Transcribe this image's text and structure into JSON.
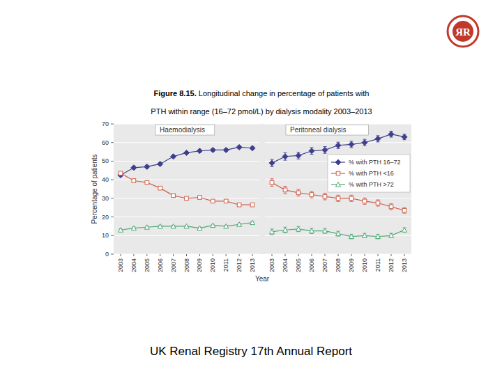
{
  "figure_label": "Figure 8.15.",
  "title_lines": [
    "Longitudinal change in percentage of patients with",
    "PTH within range (16–72 pmol/L) by dialysis modality 2003–2013"
  ],
  "footer": "UK Renal Registry 17th Annual Report",
  "logo_text": "ЯR",
  "chart_data": [
    {
      "type": "line",
      "title": "Haemodialysis",
      "y_label": "Percentage of patients",
      "x_label": "Year",
      "categories": [
        "2003",
        "2004",
        "2005",
        "2006",
        "2007",
        "2008",
        "2009",
        "2010",
        "2011",
        "2012",
        "2013"
      ],
      "ylim": [
        0,
        70
      ],
      "yticks": [
        0,
        10,
        20,
        30,
        40,
        50,
        60,
        70
      ],
      "grid": true,
      "series": [
        {
          "color": "#3f3f8f",
          "marker": "diamond",
          "values": [
            42.5,
            46.5,
            47,
            48.5,
            52.5,
            54.5,
            55.5,
            56,
            56,
            57.5,
            57
          ],
          "errors": [
            0.8,
            0.8,
            0.8,
            0.8,
            0.7,
            0.7,
            0.7,
            0.7,
            0.7,
            0.7,
            0.6
          ]
        },
        {
          "color": "#d0604c",
          "marker": "square",
          "values": [
            43.5,
            39.5,
            38.5,
            35.5,
            31.5,
            30,
            30.5,
            28.5,
            28.5,
            26.5,
            26.5
          ],
          "errors": [
            0.8,
            0.8,
            0.8,
            0.8,
            0.7,
            0.7,
            0.7,
            0.7,
            0.6,
            0.6,
            0.6
          ]
        },
        {
          "color": "#4fa874",
          "marker": "triangle",
          "values": [
            13,
            14,
            14.5,
            15,
            15,
            15,
            14,
            15.5,
            15,
            16,
            17
          ],
          "errors": [
            0.6,
            0.6,
            0.6,
            0.6,
            0.5,
            0.5,
            0.5,
            0.5,
            0.5,
            0.5,
            0.5
          ]
        }
      ]
    },
    {
      "type": "line",
      "title": "Peritoneal dialysis",
      "tick_labels": "x",
      "legend": "upper right",
      "categories": [
        "2003",
        "2004",
        "2005",
        "2006",
        "2007",
        "2008",
        "2009",
        "2010",
        "2011",
        "2012",
        "2013"
      ],
      "ylim": [
        0,
        70
      ],
      "yticks": [
        0,
        10,
        20,
        30,
        40,
        50,
        60,
        70
      ],
      "grid": true,
      "series": [
        {
          "name": "% with PTH 16–72",
          "color": "#3f3f8f",
          "marker": "diamond",
          "values": [
            49,
            52.5,
            53,
            55.5,
            56,
            58.5,
            59,
            60,
            62,
            64.5,
            63
          ],
          "errors": [
            2,
            2,
            1.8,
            1.8,
            1.8,
            1.7,
            1.7,
            1.7,
            1.7,
            1.6,
            1.5
          ]
        },
        {
          "name": "% with PTH <16",
          "color": "#d0604c",
          "marker": "square",
          "values": [
            38.5,
            34.5,
            33,
            32,
            31,
            30,
            30,
            28.5,
            27.5,
            25.5,
            23.5
          ],
          "errors": [
            2,
            2,
            1.8,
            1.8,
            1.8,
            1.7,
            1.7,
            1.7,
            1.7,
            1.6,
            1.5
          ]
        },
        {
          "name": "% with PTH >72",
          "color": "#4fa874",
          "marker": "triangle",
          "values": [
            12,
            13,
            13.5,
            12.5,
            12.5,
            11,
            9.5,
            10,
            9.5,
            10,
            13
          ],
          "errors": [
            1.5,
            1.5,
            1.4,
            1.4,
            1.3,
            1.3,
            1.2,
            1.2,
            1.2,
            1.2,
            1.2
          ]
        }
      ]
    }
  ]
}
